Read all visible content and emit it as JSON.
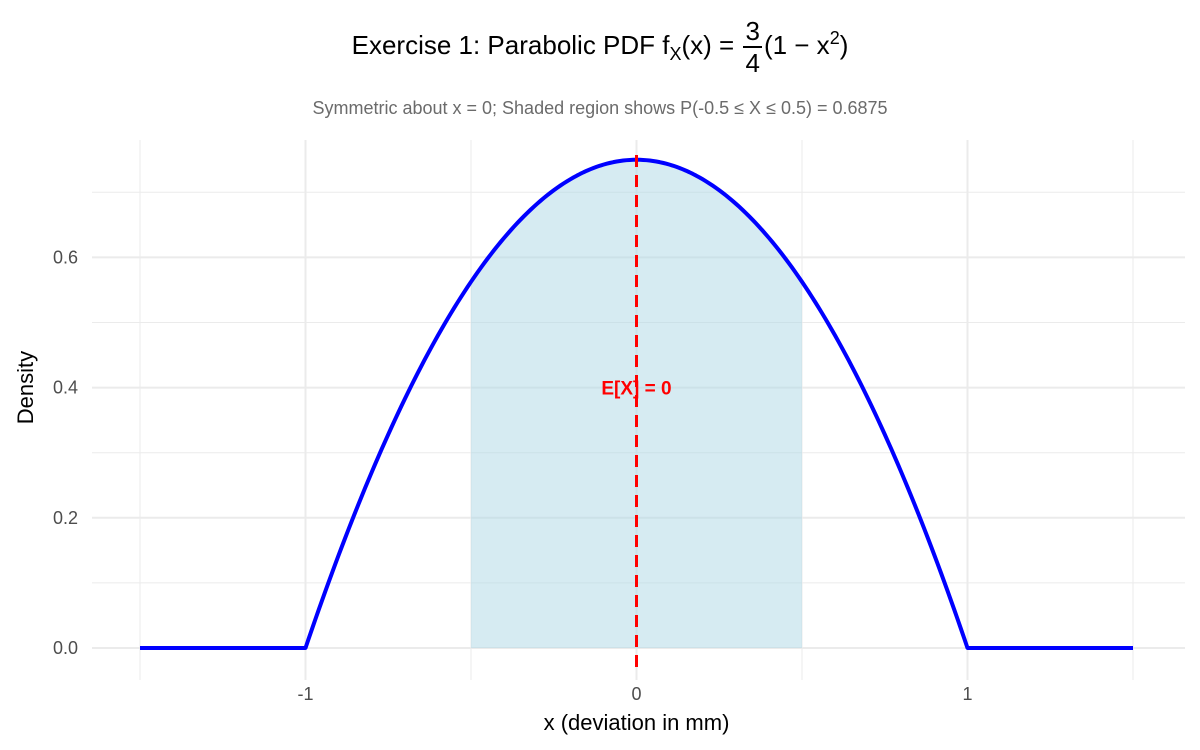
{
  "chart_data": {
    "type": "line",
    "title": {
      "prefix": "Exercise 1: Parabolic PDF f",
      "sub": "X",
      "mid": "(x) = ",
      "frac_num": "3",
      "frac_den": "4",
      "post": "(1 − x",
      "sup": "2",
      "end": ")"
    },
    "subtitle": "Symmetric about x = 0; Shaded region shows P(-0.5 ≤ X ≤ 0.5) = 0.6875",
    "xlabel": "x (deviation in mm)",
    "ylabel": "Density",
    "xlim": [
      -1.5,
      1.5
    ],
    "ylim": [
      0,
      0.75
    ],
    "x_ticks": [
      -1,
      0,
      1
    ],
    "x_tick_labels": [
      "-1",
      "0",
      "1"
    ],
    "y_ticks": [
      0,
      0.2,
      0.4,
      0.6
    ],
    "y_tick_labels": [
      "0.0",
      "0.2",
      "0.4",
      "0.6"
    ],
    "grid": true,
    "series": [
      {
        "function": "0.75*(1-x^2) for |x|<=1, else 0",
        "x": [
          -1.5,
          -1.0,
          -0.9,
          -0.8,
          -0.7,
          -0.6,
          -0.5,
          -0.4,
          -0.3,
          -0.2,
          -0.1,
          0.0,
          0.1,
          0.2,
          0.3,
          0.4,
          0.5,
          0.6,
          0.7,
          0.8,
          0.9,
          1.0,
          1.5
        ],
        "y": [
          0,
          0,
          0.1425,
          0.27,
          0.3825,
          0.48,
          0.5625,
          0.63,
          0.6825,
          0.72,
          0.7425,
          0.75,
          0.7425,
          0.72,
          0.6825,
          0.63,
          0.5625,
          0.48,
          0.3825,
          0.27,
          0.1425,
          0,
          0
        ]
      }
    ],
    "shaded_region": {
      "from": -0.5,
      "to": 0.5,
      "probability": 0.6875
    },
    "mean_line": {
      "x": 0,
      "label": "E[X] = 0",
      "label_y": 0.4
    },
    "colors": {
      "curve": "#0000ff",
      "shade": "#add8e6",
      "mean": "#ff0000",
      "grid": "#ebebeb",
      "tick_text": "#4d4d4d"
    }
  }
}
